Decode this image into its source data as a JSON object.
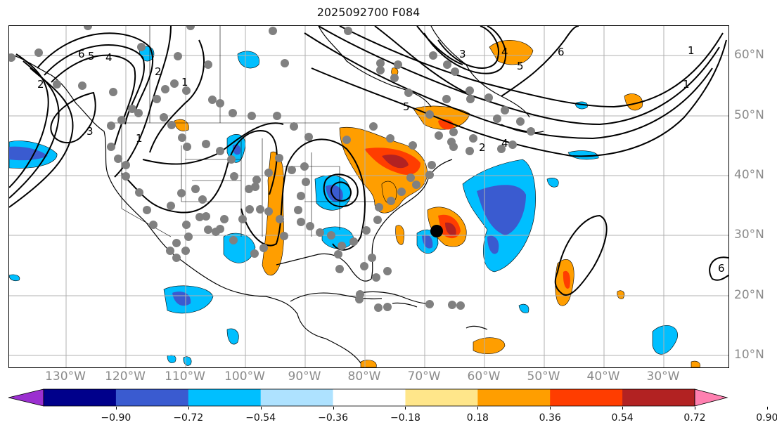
{
  "title": "2025092700 F084",
  "map": {
    "lon_labels": [
      "130°W",
      "120°W",
      "110°W",
      "100°W",
      "90°W",
      "80°W",
      "70°W",
      "60°W",
      "50°W",
      "40°W",
      "30°W"
    ],
    "lat_labels": [
      "60°N",
      "50°N",
      "40°N",
      "30°N",
      "20°N",
      "10°N"
    ],
    "contour_labels": [
      "6",
      "5",
      "4",
      "3",
      "2",
      "1",
      "1",
      "2",
      "3",
      "4",
      "5",
      "6",
      "1",
      "1",
      "2",
      "4",
      "5",
      "6"
    ],
    "colors": {
      "light_blue": "#00bfff",
      "mid_blue": "#3a5bd0",
      "orange": "#ff9e00",
      "red_orange": "#ff3d00",
      "dark_red": "#b22222",
      "land_line": "#000000",
      "station_dot": "#808080",
      "gridline": "#b0b0b0"
    },
    "icons": [
      "station-dot",
      "storm-center-marker"
    ]
  },
  "colorbar": {
    "tick_labels": [
      "−0.90",
      "−0.72",
      "−0.54",
      "−0.36",
      "−0.18",
      "0.18",
      "0.36",
      "0.54",
      "0.72",
      "0.90"
    ],
    "bin_colors": [
      "#9b30d0",
      "#00008b",
      "#3a5bd0",
      "#00bfff",
      "#aee2ff",
      "#ffffff",
      "#ffe68a",
      "#ff9e00",
      "#ff3d00",
      "#b22222",
      "#ff80b0"
    ],
    "extend": "both"
  }
}
